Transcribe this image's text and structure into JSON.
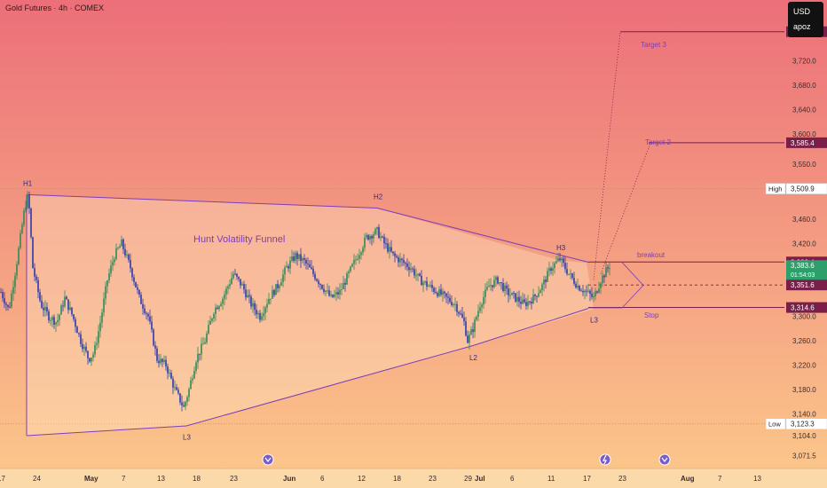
{
  "header": {
    "symbol_line": "Gold Futures · 4h · COMEX"
  },
  "price_axis": {
    "currency": "USD",
    "user": "apoz",
    "ticks": [
      "3,720.0",
      "3,680.0",
      "3,640.0",
      "3,600.0",
      "3,550.0",
      "3,460.0",
      "3,420.0",
      "3,300.0",
      "3,260.0",
      "3,220.0",
      "3,180.0",
      "3,140.0",
      "3,104.0",
      "3,071.5"
    ]
  },
  "time_axis": {
    "labels": [
      {
        "text": "17",
        "bar": 0
      },
      {
        "text": "24",
        "bar": 40
      },
      {
        "text": "May",
        "bar": 98
      },
      {
        "text": "7",
        "bar": 140
      },
      {
        "text": "13",
        "bar": 180
      },
      {
        "text": "18",
        "bar": 220
      },
      {
        "text": "23",
        "bar": 262
      },
      {
        "text": "Jun",
        "bar": 322
      },
      {
        "text": "6",
        "bar": 364
      },
      {
        "text": "12",
        "bar": 406
      },
      {
        "text": "18",
        "bar": 446
      },
      {
        "text": "23",
        "bar": 486
      },
      {
        "text": "29",
        "bar": 526
      },
      {
        "text": "Jul",
        "bar": 538
      },
      {
        "text": "6",
        "bar": 578
      },
      {
        "text": "11",
        "bar": 620
      },
      {
        "text": "17",
        "bar": 660
      },
      {
        "text": "23",
        "bar": 700
      },
      {
        "text": "Aug",
        "bar": 770
      },
      {
        "text": "7",
        "bar": 812
      },
      {
        "text": "13",
        "bar": 852
      }
    ]
  },
  "price_labels": [
    {
      "text": "3,767.9",
      "value": 3767.9,
      "color": "#7a1f4a",
      "text_color": "#ffffff"
    },
    {
      "text": "3,585.4",
      "value": 3585.4,
      "color": "#7a1f4a",
      "text_color": "#ffffff"
    },
    {
      "text": "3,509.9",
      "value": 3509.9,
      "color": "#ffffff",
      "text_color": "#222222",
      "tag": "High"
    },
    {
      "text": "3,389.4",
      "value": 3389.4,
      "color": "#7a1f4a",
      "text_color": "#ffffff"
    },
    {
      "text": "3,383.6",
      "value": 3383.6,
      "color": "#2e9e6a",
      "text_color": "#ffffff",
      "sub": "01:54:03"
    },
    {
      "text": "3,351.6",
      "value": 3351.6,
      "color": "#7a1f4a",
      "text_color": "#ffffff"
    },
    {
      "text": "3,314.6",
      "value": 3314.6,
      "color": "#7a1f4a",
      "text_color": "#ffffff"
    },
    {
      "text": "3,123.3",
      "value": 3123.3,
      "color": "#ffffff",
      "text_color": "#222222",
      "tag": "Low"
    }
  ],
  "annotations": {
    "funnel_title": "Hunt Volatility Funnel",
    "points": [
      {
        "label": "H1",
        "bar": 29,
        "value": 3500
      },
      {
        "label": "H2",
        "bar": 424,
        "value": 3478
      },
      {
        "label": "H3",
        "bar": 630,
        "value": 3394
      },
      {
        "label": "L3",
        "bar": 209,
        "value": 3118
      },
      {
        "label": "L2",
        "bar": 532,
        "value": 3248
      },
      {
        "label": "L3",
        "bar": 668,
        "value": 3310
      }
    ],
    "breakout_label": "breakout",
    "stop_label": "Stop",
    "target2_label": "Target 2",
    "target3_label": "Target 3"
  },
  "colors": {
    "bg_top": "#ec6f79",
    "bg_bottom": "#fcc98b",
    "up": "#2e8b57",
    "down": "#2a3bb0",
    "line": "#7b3fb8",
    "level": "#7a1f4a"
  },
  "chart_data": {
    "type": "line",
    "title": "",
    "ylim": [
      3050,
      3820
    ],
    "x": [
      0,
      9,
      18,
      27,
      31,
      36,
      45,
      54,
      63,
      72,
      81,
      90,
      99,
      105,
      112,
      120,
      128,
      136,
      146,
      156,
      166,
      176,
      186,
      196,
      206,
      212,
      220,
      230,
      240,
      250,
      262,
      272,
      282,
      292,
      302,
      312,
      322,
      332,
      342,
      352,
      362,
      372,
      382,
      392,
      402,
      412,
      424,
      432,
      442,
      452,
      462,
      472,
      482,
      492,
      502,
      512,
      522,
      526,
      532,
      540,
      550,
      560,
      570,
      580,
      590,
      600,
      610,
      620,
      630,
      640,
      650,
      660,
      668,
      676,
      686
    ],
    "series": [
      {
        "values": [
          3340,
          3310,
          3390,
          3480,
          3500,
          3380,
          3320,
          3300,
          3290,
          3330,
          3300,
          3260,
          3230,
          3240,
          3290,
          3360,
          3400,
          3420,
          3380,
          3330,
          3300,
          3230,
          3220,
          3180,
          3150,
          3180,
          3230,
          3260,
          3310,
          3330,
          3370,
          3350,
          3320,
          3300,
          3330,
          3350,
          3380,
          3400,
          3390,
          3370,
          3350,
          3330,
          3340,
          3370,
          3400,
          3430,
          3440,
          3420,
          3400,
          3390,
          3380,
          3360,
          3350,
          3340,
          3330,
          3320,
          3290,
          3260,
          3280,
          3320,
          3350,
          3360,
          3340,
          3330,
          3320,
          3330,
          3350,
          3380,
          3394,
          3370,
          3350,
          3340,
          3330,
          3360,
          3384
        ]
      }
    ]
  }
}
